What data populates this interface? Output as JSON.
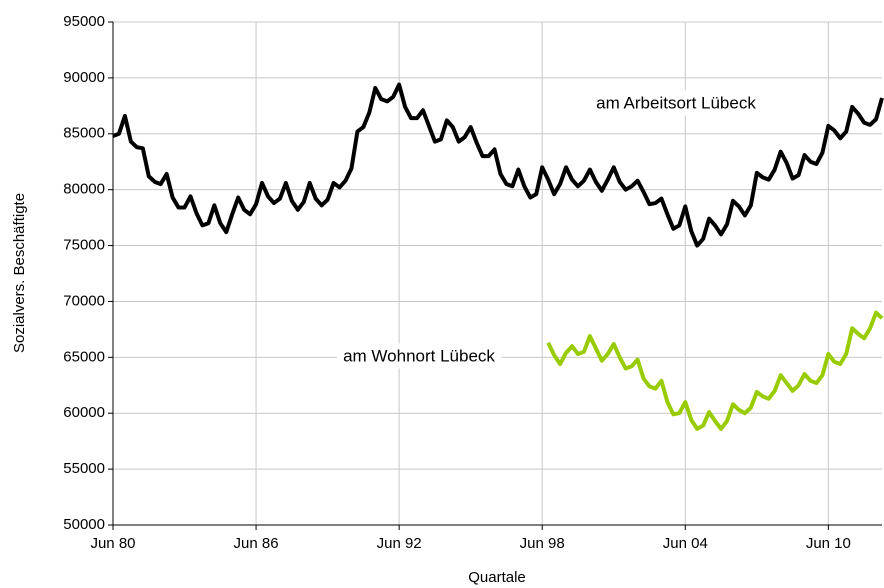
{
  "chart_data": {
    "type": "line",
    "xlabel": "Quartale",
    "ylabel": "Sozialvers. Beschäftigte",
    "categories": [
      "Jun 80",
      null,
      null,
      null,
      null,
      null,
      null,
      null,
      null,
      null,
      null,
      null,
      null,
      null,
      null,
      null,
      null,
      null,
      null,
      null,
      null,
      null,
      null,
      null,
      "Jun 86",
      null,
      null,
      null,
      null,
      null,
      null,
      null,
      null,
      null,
      null,
      null,
      null,
      null,
      null,
      null,
      null,
      null,
      null,
      null,
      null,
      null,
      null,
      null,
      "Jun 92",
      null,
      null,
      null,
      null,
      null,
      null,
      null,
      null,
      null,
      null,
      null,
      null,
      null,
      null,
      null,
      null,
      null,
      null,
      null,
      null,
      null,
      null,
      null,
      "Jun 98",
      null,
      null,
      null,
      null,
      null,
      null,
      null,
      null,
      null,
      null,
      null,
      null,
      null,
      null,
      null,
      null,
      null,
      null,
      null,
      null,
      null,
      null,
      null,
      "Jun 04",
      null,
      null,
      null,
      null,
      null,
      null,
      null,
      null,
      null,
      null,
      null,
      null,
      null,
      null,
      null,
      null,
      null,
      null,
      null,
      null,
      null,
      null,
      null,
      "Jun 10",
      null,
      null,
      null,
      null,
      null,
      null,
      null,
      null,
      null
    ],
    "series": [
      {
        "name": "am Arbeitsort Lübeck",
        "color": "#000000",
        "values": [
          84800,
          85000,
          86600,
          84300,
          83800,
          83700,
          81200,
          80700,
          80500,
          81400,
          79300,
          78400,
          78400,
          79400,
          77900,
          76800,
          77000,
          78600,
          77000,
          76200,
          77800,
          79300,
          78200,
          77800,
          78700,
          80600,
          79400,
          78800,
          79200,
          80600,
          79000,
          78200,
          78900,
          80600,
          79200,
          78600,
          79100,
          80600,
          80200,
          80800,
          81900,
          85200,
          85600,
          86900,
          89100,
          88100,
          87900,
          88300,
          89400,
          87400,
          86400,
          86400,
          87100,
          85700,
          84300,
          84500,
          86200,
          85600,
          84300,
          84700,
          85600,
          84200,
          83000,
          83000,
          83600,
          81400,
          80500,
          80300,
          81800,
          80300,
          79300,
          79600,
          82000,
          80900,
          79600,
          80500,
          82000,
          80900,
          80300,
          80800,
          81800,
          80700,
          79900,
          80900,
          82000,
          80700,
          80000,
          80300,
          80800,
          79800,
          78700,
          78800,
          79200,
          77800,
          76500,
          76800,
          78500,
          76300,
          75000,
          75600,
          77400,
          76800,
          76000,
          76900,
          79000,
          78500,
          77700,
          78600,
          81500,
          81100,
          80900,
          81800,
          83400,
          82400,
          81000,
          81300,
          83100,
          82500,
          82300,
          83300,
          85700,
          85300,
          84600,
          85200,
          87400,
          86800,
          86000,
          85800,
          86300,
          88200
        ]
      },
      {
        "name": "am Wohnort Lübeck",
        "color": "#99cc00",
        "values": [
          null,
          null,
          null,
          null,
          null,
          null,
          null,
          null,
          null,
          null,
          null,
          null,
          null,
          null,
          null,
          null,
          null,
          null,
          null,
          null,
          null,
          null,
          null,
          null,
          null,
          null,
          null,
          null,
          null,
          null,
          null,
          null,
          null,
          null,
          null,
          null,
          null,
          null,
          null,
          null,
          null,
          null,
          null,
          null,
          null,
          null,
          null,
          null,
          null,
          null,
          null,
          null,
          null,
          null,
          null,
          null,
          null,
          null,
          null,
          null,
          null,
          null,
          null,
          null,
          null,
          null,
          null,
          null,
          null,
          null,
          null,
          null,
          null,
          66300,
          65200,
          64400,
          65400,
          66000,
          65300,
          65500,
          66900,
          65800,
          64700,
          65300,
          66200,
          65000,
          64000,
          64200,
          64800,
          63100,
          62400,
          62200,
          62900,
          61000,
          59900,
          60000,
          61000,
          59400,
          58600,
          58900,
          60100,
          59300,
          58600,
          59300,
          60800,
          60300,
          60000,
          60500,
          61900,
          61500,
          61300,
          62000,
          63400,
          62700,
          62000,
          62500,
          63500,
          62900,
          62700,
          63400,
          65300,
          64600,
          64400,
          65300,
          67600,
          67100,
          66700,
          67600,
          69000,
          68500
        ]
      }
    ],
    "ylim": [
      50000,
      95000
    ],
    "yticks": [
      50000,
      55000,
      60000,
      65000,
      70000,
      75000,
      80000,
      85000,
      90000,
      95000
    ],
    "grid": true
  }
}
